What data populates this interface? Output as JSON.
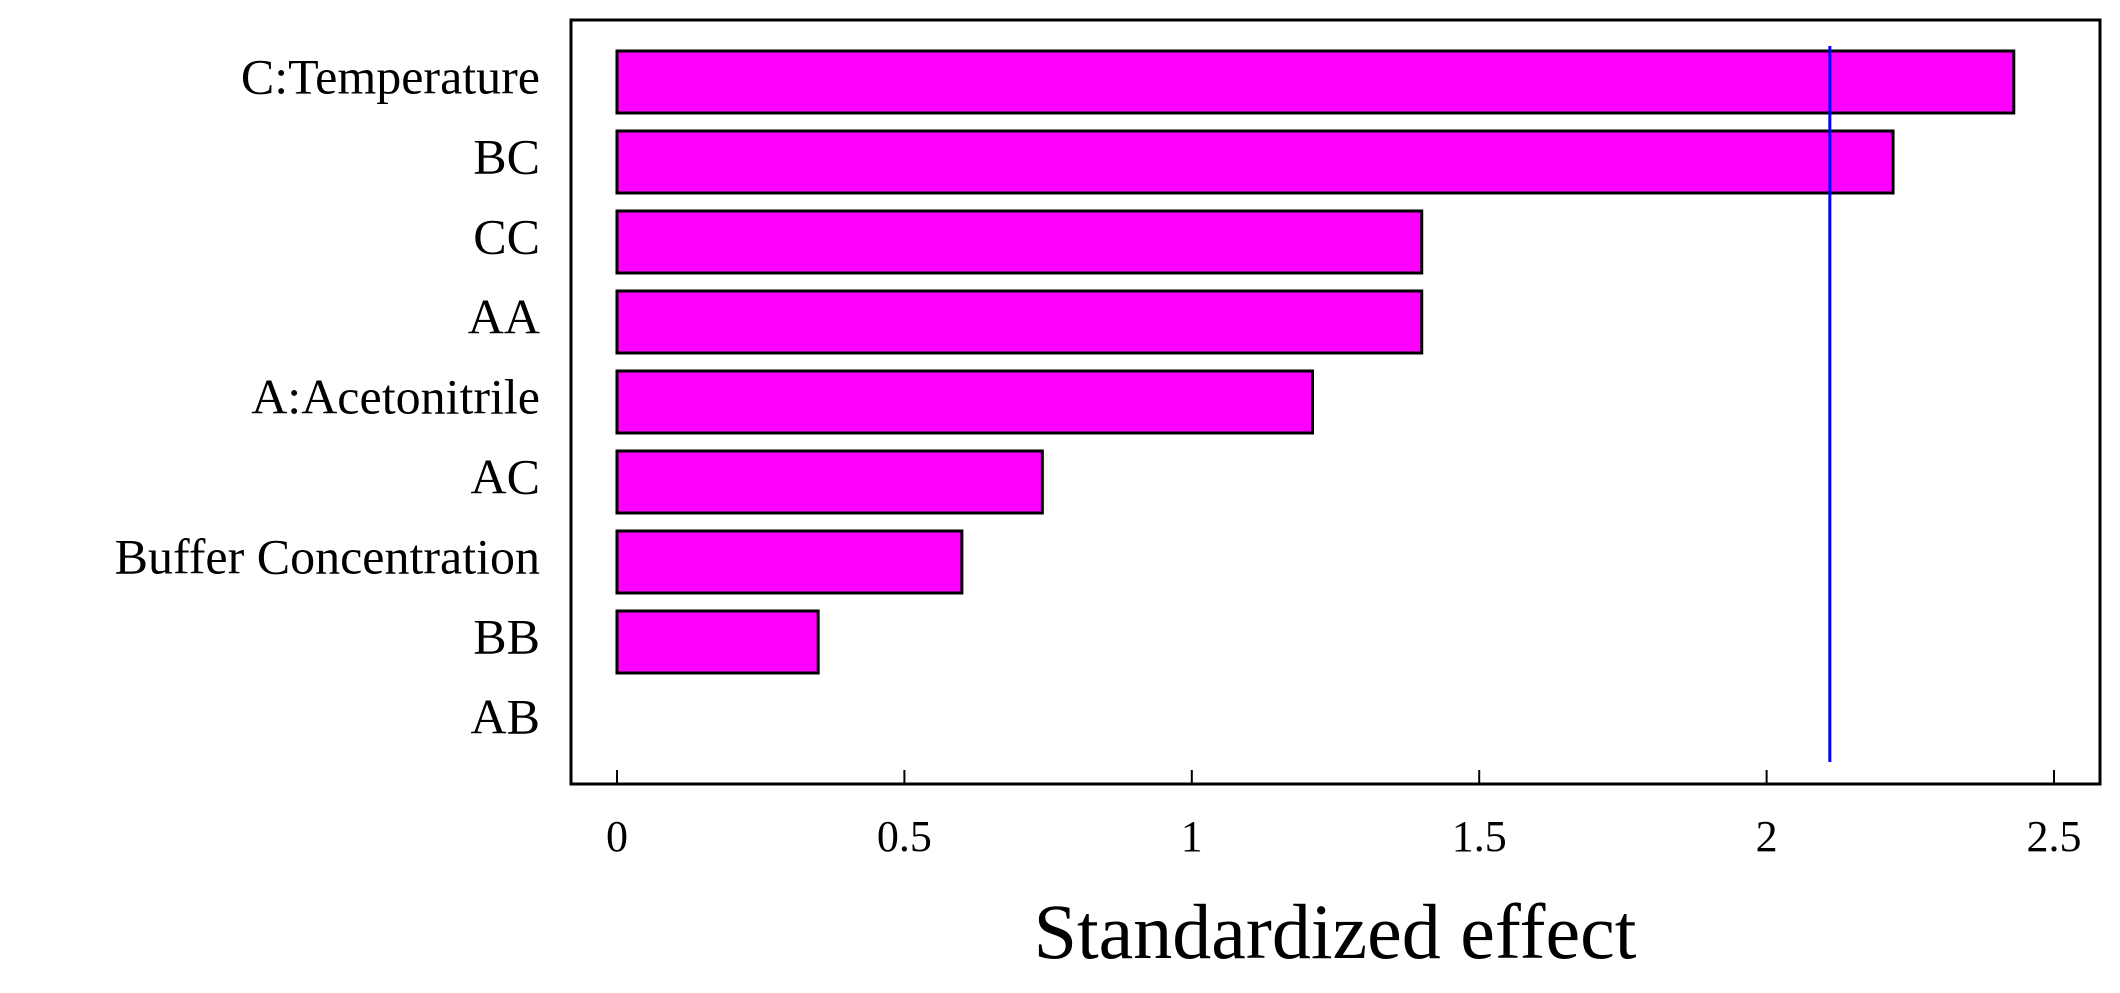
{
  "chart_data": {
    "type": "bar",
    "orientation": "horizontal",
    "categories": [
      "C:Temperature",
      "BC",
      "CC",
      "AA",
      "A:Acetonitrile",
      "AC",
      "Buffer Concentration",
      "BB",
      "AB"
    ],
    "values": [
      2.43,
      2.22,
      1.4,
      1.4,
      1.21,
      0.74,
      0.6,
      0.35,
      0
    ],
    "color": "#ff00ff",
    "xlabel": "Standardized effect",
    "xlim": [
      -0.08,
      2.58
    ],
    "xticks": [
      0,
      0.5,
      1,
      1.5,
      2,
      2.5
    ],
    "reference_line": {
      "value": 2.11,
      "color": "#0000ff"
    },
    "grid": false
  }
}
